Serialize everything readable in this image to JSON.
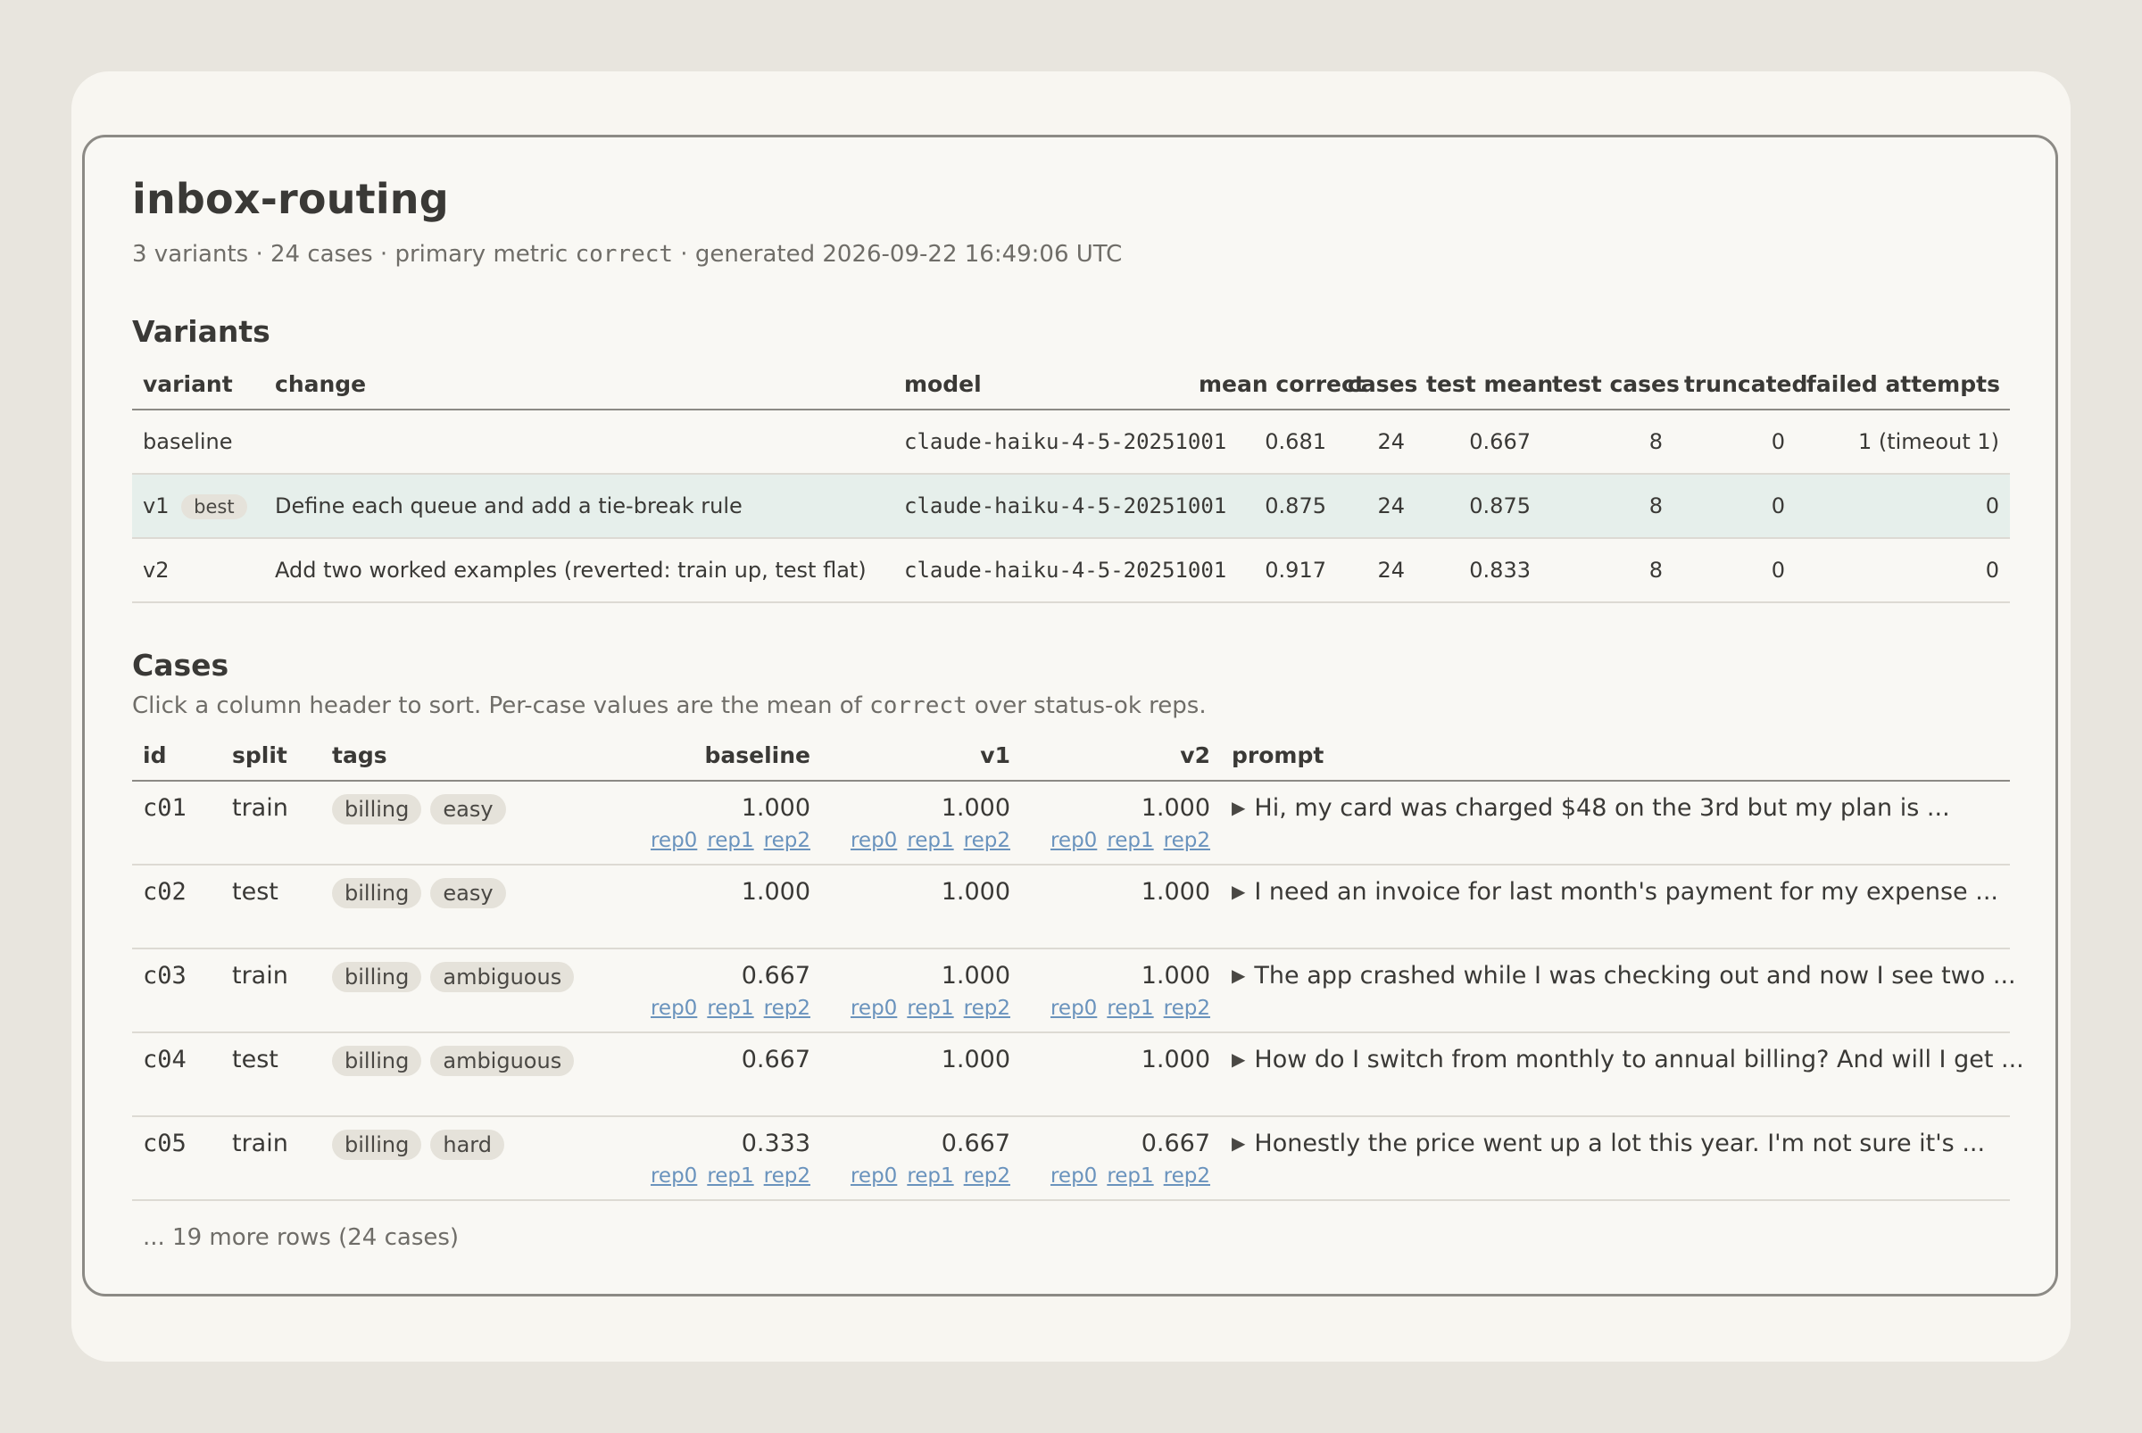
{
  "report": {
    "title": "inbox-routing",
    "meta": {
      "prefix": "3 variants · 24 cases · primary metric ",
      "metric": "correct",
      "suffix": " · generated 2026-09-22 16:49:06 UTC"
    }
  },
  "variants": {
    "heading": "Variants",
    "columns": [
      "variant",
      "change",
      "model",
      "mean correct",
      "cases",
      "test mean",
      "test cases",
      "truncated",
      "failed attempts"
    ],
    "rows": [
      {
        "variant": "baseline",
        "badge": "",
        "change": "",
        "model": "claude-haiku-4-5-20251001",
        "mean": "0.681",
        "cases": "24",
        "test_mean": "0.667",
        "test_cases": "8",
        "truncated": "0",
        "failed": "1 (timeout 1)"
      },
      {
        "variant": "v1",
        "badge": "best",
        "change": "Define each queue and add a tie-break rule",
        "model": "claude-haiku-4-5-20251001",
        "mean": "0.875",
        "cases": "24",
        "test_mean": "0.875",
        "test_cases": "8",
        "truncated": "0",
        "failed": "0"
      },
      {
        "variant": "v2",
        "badge": "",
        "change": "Add two worked examples (reverted: train up, test flat)",
        "model": "claude-haiku-4-5-20251001",
        "mean": "0.917",
        "cases": "24",
        "test_mean": "0.833",
        "test_cases": "8",
        "truncated": "0",
        "failed": "0"
      }
    ]
  },
  "cases": {
    "heading": "Cases",
    "hint": {
      "prefix": "Click a column header to sort. Per-case values are the mean of ",
      "metric": "correct",
      "suffix": " over status-ok reps."
    },
    "columns": [
      "id",
      "split",
      "tags",
      "baseline",
      "v1",
      "v2",
      "prompt"
    ],
    "rep_labels": [
      "rep0",
      "rep1",
      "rep2"
    ],
    "rows": [
      {
        "id": "c01",
        "split": "train",
        "tags": [
          "billing",
          "easy"
        ],
        "scores": [
          "1.000",
          "1.000",
          "1.000"
        ],
        "has_reps": true,
        "prompt": "Hi, my card was charged $48 on the 3rd but my plan is ..."
      },
      {
        "id": "c02",
        "split": "test",
        "tags": [
          "billing",
          "easy"
        ],
        "scores": [
          "1.000",
          "1.000",
          "1.000"
        ],
        "has_reps": false,
        "prompt": "I need an invoice for last month's payment for my expense ..."
      },
      {
        "id": "c03",
        "split": "train",
        "tags": [
          "billing",
          "ambiguous"
        ],
        "scores": [
          "0.667",
          "1.000",
          "1.000"
        ],
        "has_reps": true,
        "prompt": "The app crashed while I was checking out and now I see two ..."
      },
      {
        "id": "c04",
        "split": "test",
        "tags": [
          "billing",
          "ambiguous"
        ],
        "scores": [
          "0.667",
          "1.000",
          "1.000"
        ],
        "has_reps": false,
        "prompt": "How do I switch from monthly to annual billing? And will I get ..."
      },
      {
        "id": "c05",
        "split": "train",
        "tags": [
          "billing",
          "hard"
        ],
        "scores": [
          "0.333",
          "0.667",
          "0.667"
        ],
        "has_reps": true,
        "prompt": "Honestly the price went up a lot this year. I'm not sure it's ..."
      }
    ],
    "more_rows": "... 19 more rows (24 cases)"
  },
  "colors": {
    "background": "#e8e5de",
    "card": "#f8f6f1",
    "best_row": "#e6efeb",
    "link": "#6a93bd",
    "tag_bg": "#e5e2da"
  }
}
